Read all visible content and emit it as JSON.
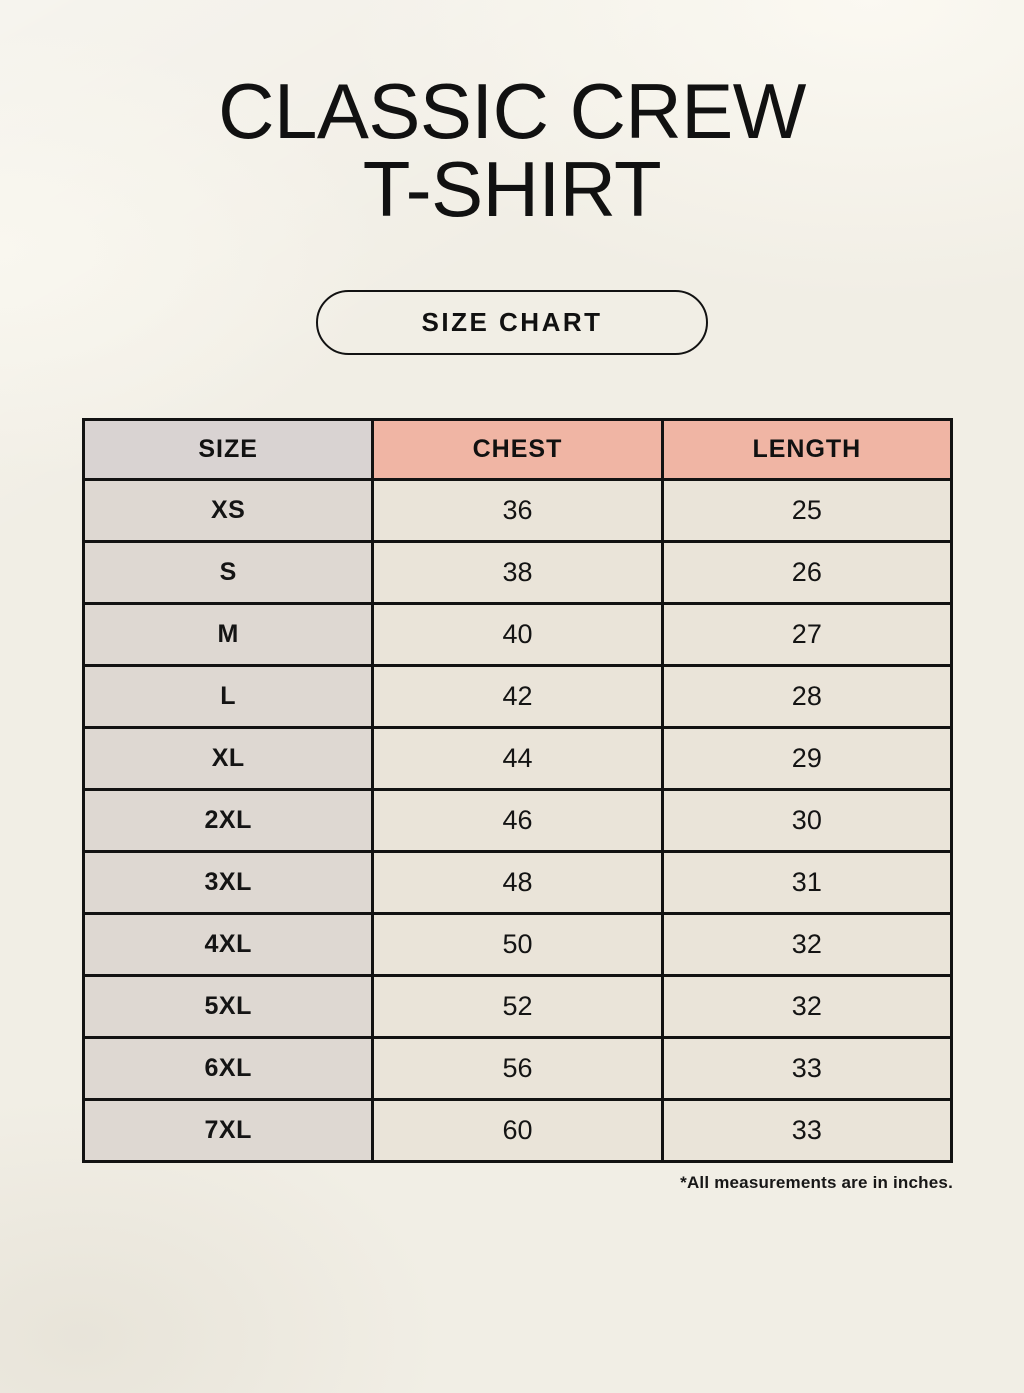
{
  "page": {
    "title_line1": "CLASSIC CREW",
    "title_line2": "T-SHIRT",
    "size_chart_button_label": "SIZE CHART",
    "footnote": "*All measurements are in inches."
  },
  "chart_data": {
    "type": "table",
    "title": "CLASSIC CREW T-SHIRT",
    "subtitle": "SIZE CHART",
    "units": "inches",
    "columns": [
      "SIZE",
      "CHEST",
      "LENGTH"
    ],
    "rows": [
      [
        "XS",
        36,
        25
      ],
      [
        "S",
        38,
        26
      ],
      [
        "M",
        40,
        27
      ],
      [
        "L",
        42,
        28
      ],
      [
        "XL",
        44,
        29
      ],
      [
        "2XL",
        46,
        30
      ],
      [
        "3XL",
        48,
        31
      ],
      [
        "4XL",
        50,
        32
      ],
      [
        "5XL",
        52,
        32
      ],
      [
        "6XL",
        56,
        33
      ],
      [
        "7XL",
        60,
        33
      ]
    ],
    "note": "*All measurements are in inches."
  },
  "colors": {
    "bg": "#f1eee5",
    "salmon": "#f0b5a4",
    "gray_header": "#d9d3d2",
    "gray_cell": "#ded8d2",
    "cream_cell": "#eae4d9",
    "border": "#121212",
    "text": "#141414"
  }
}
